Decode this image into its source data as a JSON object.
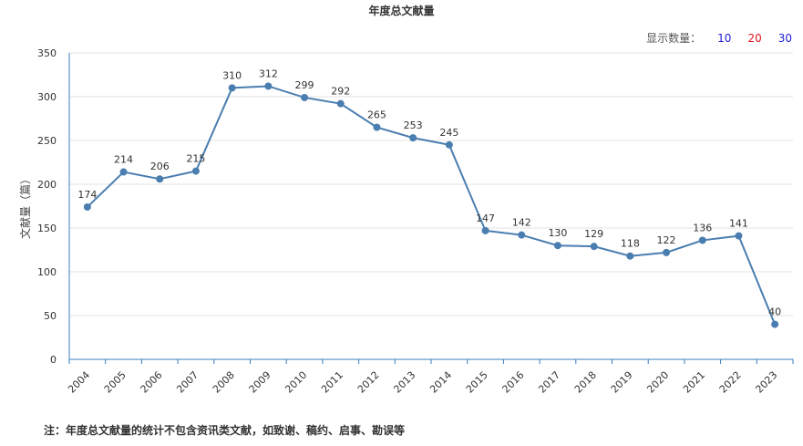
{
  "title": "年度总文献量",
  "controls": {
    "label": "显示数量：",
    "options": [
      {
        "label": "10",
        "color": "#1f1fd6"
      },
      {
        "label": "20",
        "color": "#e0141e"
      },
      {
        "label": "30",
        "color": "#1f1fd6"
      }
    ]
  },
  "note": "注：年度总文献量的统计不包含资讯类文献，如致谢、稿约、启事、勘误等",
  "colors": {
    "line": "#4a7eb0",
    "axis": "#3a7cc0",
    "grid": "#e3e3e3"
  },
  "chart_data": {
    "type": "line",
    "ylabel": "文献量（篇）",
    "ylim": [
      0,
      350
    ],
    "yticks": [
      0,
      50,
      100,
      150,
      200,
      250,
      300,
      350
    ],
    "grid": true,
    "categories": [
      "2004",
      "2005",
      "2006",
      "2007",
      "2008",
      "2009",
      "2010",
      "2011",
      "2012",
      "2013",
      "2014",
      "2015",
      "2016",
      "2017",
      "2018",
      "2019",
      "2020",
      "2021",
      "2022",
      "2023"
    ],
    "values": [
      174,
      214,
      206,
      215,
      310,
      312,
      299,
      292,
      265,
      253,
      245,
      147,
      142,
      130,
      129,
      118,
      122,
      136,
      141,
      40
    ]
  }
}
